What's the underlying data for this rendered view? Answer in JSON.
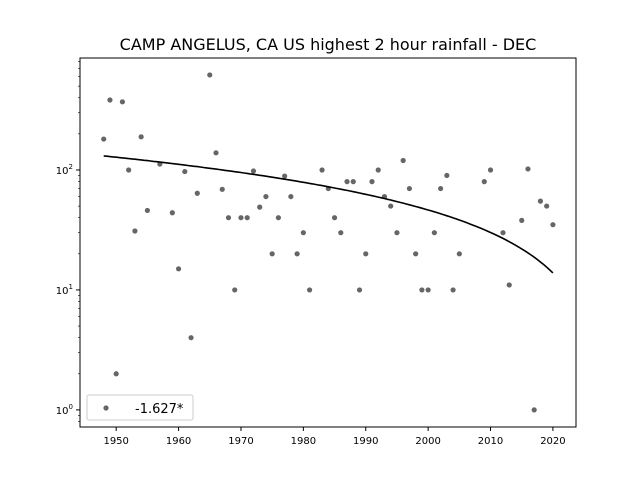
{
  "chart_data": {
    "type": "scatter",
    "title": "CAMP ANGELUS, CA US highest 2 hour rainfall - DEC",
    "xlabel": "",
    "ylabel": "",
    "xlim": [
      1944.2,
      2023.7
    ],
    "ylim": [
      0.72,
      858
    ],
    "yscale": "log",
    "grid": false,
    "x_ticks": [
      1950,
      1960,
      1970,
      1980,
      1990,
      2000,
      2010,
      2020
    ],
    "x_tick_labels": [
      "1950",
      "1960",
      "1970",
      "1980",
      "1990",
      "2000",
      "2010",
      "2020"
    ],
    "y_ticks": [
      1,
      10,
      100
    ],
    "y_tick_labels": [
      "10^0",
      "10^1",
      "10^2"
    ],
    "legend": {
      "placement": "lower-left",
      "entries": [
        "-1.627*"
      ]
    },
    "series": [
      {
        "name": "-1.627*",
        "kind": "points",
        "color": "#555555",
        "x": [
          1948,
          1949,
          1950,
          1951,
          1952,
          1953,
          1954,
          1955,
          1957,
          1959,
          1960,
          1961,
          1962,
          1963,
          1965,
          1966,
          1967,
          1968,
          1969,
          1970,
          1971,
          1972,
          1973,
          1974,
          1975,
          1976,
          1977,
          1978,
          1979,
          1980,
          1981,
          1983,
          1984,
          1985,
          1986,
          1987,
          1988,
          1989,
          1990,
          1991,
          1992,
          1993,
          1994,
          1995,
          1996,
          1997,
          1998,
          1999,
          2000,
          2001,
          2002,
          2003,
          2004,
          2005,
          2009,
          2010,
          2012,
          2013,
          2015,
          2016,
          2017,
          2018,
          2019,
          2020
        ],
        "y": [
          181,
          383,
          2,
          370,
          100,
          31,
          189,
          46,
          112,
          44,
          15,
          97,
          4,
          64,
          620,
          139,
          69,
          40,
          10,
          40,
          40,
          98,
          49,
          60,
          20,
          40,
          89,
          60,
          20,
          30,
          10,
          100,
          70,
          40,
          30,
          80,
          80,
          10,
          20,
          80,
          100,
          60,
          50,
          30,
          120,
          70,
          20,
          10,
          10,
          30,
          70,
          90,
          10,
          20,
          80,
          100,
          30,
          11,
          38,
          102,
          1,
          55,
          50,
          35
        ]
      },
      {
        "name": "trend",
        "kind": "line",
        "color": "#000000",
        "intercept_at_1948": 131,
        "slope_per_year": -1.627,
        "x_range": [
          1948,
          2020
        ]
      }
    ]
  }
}
